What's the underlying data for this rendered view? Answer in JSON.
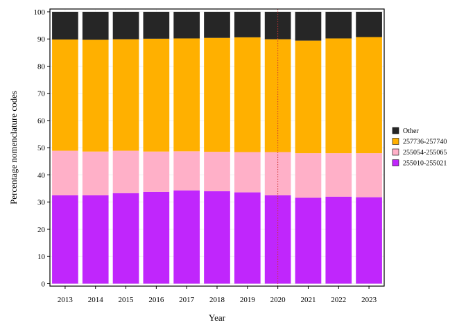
{
  "chart_data": {
    "type": "bar",
    "stacked": true,
    "categories": [
      "2013",
      "2014",
      "2015",
      "2016",
      "2017",
      "2018",
      "2019",
      "2020",
      "2021",
      "2022",
      "2023"
    ],
    "series": [
      {
        "name": "255010-255021",
        "color": "#c026fc",
        "values": [
          32.5,
          32.5,
          33.3,
          33.8,
          34.3,
          34.0,
          33.6,
          32.5,
          31.6,
          32.0,
          31.8
        ]
      },
      {
        "name": "255054-255065",
        "color": "#ffb0c8",
        "values": [
          16.4,
          16.1,
          15.6,
          14.8,
          14.4,
          14.5,
          14.8,
          15.9,
          16.4,
          16.0,
          16.2
        ]
      },
      {
        "name": "257736-257740",
        "color": "#ffb000",
        "values": [
          40.9,
          41.1,
          41.0,
          41.5,
          41.5,
          41.9,
          42.2,
          41.5,
          41.4,
          42.2,
          42.7
        ]
      },
      {
        "name": "Other",
        "color": "#262626",
        "values": [
          10.2,
          10.3,
          10.1,
          9.9,
          9.8,
          9.6,
          9.4,
          10.1,
          10.6,
          9.8,
          9.3
        ]
      }
    ],
    "xlabel": "Year",
    "ylabel": "Percentage nomenclature codes",
    "ylim": [
      0,
      100
    ],
    "yticks": [
      0,
      10,
      20,
      30,
      40,
      50,
      60,
      70,
      80,
      90,
      100
    ],
    "grid": true,
    "reference_line": {
      "x": "2020",
      "color": "#cc3333",
      "style": "dotted"
    },
    "legend_position": "right"
  }
}
